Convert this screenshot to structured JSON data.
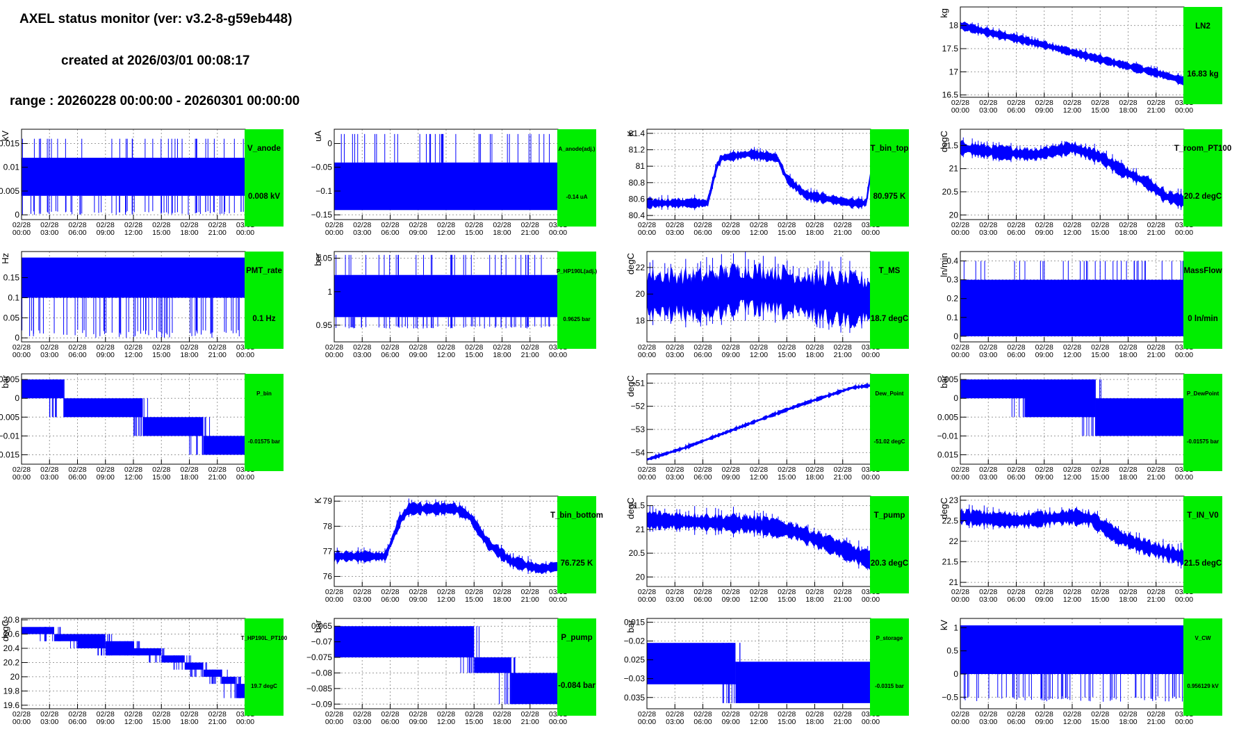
{
  "header": {
    "title": "AXEL status monitor (ver: v3.2-8-g59eb448)",
    "created": "created at 2026/03/01 00:08:17",
    "range": "range : 20260228 00:00:00 - 20260301 00:00:00"
  },
  "colors": {
    "data": "#0000ff",
    "panel_bg": "#00ee00",
    "grid": "#9a9a9a"
  },
  "time_axis": [
    "02/28\n00:00",
    "02/28\n03:00",
    "02/28\n06:00",
    "02/28\n09:00",
    "02/28\n12:00",
    "02/28\n15:00",
    "02/28\n18:00",
    "02/28\n21:00",
    "03/01\n00:00"
  ],
  "chart_data": [
    {
      "name": "LN2",
      "row": 0,
      "col": 3,
      "type": "line",
      "render": "trend",
      "unit": "kg",
      "value": "16.83 kg",
      "y_ticks": [
        {
          "v": 16.5,
          "t": "16.5"
        },
        {
          "v": 17,
          "t": "17"
        },
        {
          "v": 17.5,
          "t": "17.5"
        },
        {
          "v": 18,
          "t": "18"
        }
      ],
      "ylim": [
        16.45,
        18.4
      ],
      "trend": [
        [
          0,
          18.0
        ],
        [
          3,
          17.85
        ],
        [
          6,
          17.72
        ],
        [
          9,
          17.58
        ],
        [
          12,
          17.42
        ],
        [
          15,
          17.27
        ],
        [
          18,
          17.12
        ],
        [
          21,
          16.98
        ],
        [
          24,
          16.8
        ]
      ],
      "spread": 0.22
    },
    {
      "name": "V_anode",
      "row": 1,
      "col": 0,
      "type": "line",
      "render": "band",
      "unit": "kV",
      "value": "0.008 kV",
      "y_ticks": [
        {
          "v": 0,
          "t": "0"
        },
        {
          "v": 0.005,
          "t": "0.005"
        },
        {
          "v": 0.01,
          "t": "0.01"
        },
        {
          "v": 0.015,
          "t": "0.015"
        }
      ],
      "ylim": [
        -0.001,
        0.018
      ],
      "bands": [
        [
          0,
          24,
          0.004,
          0.012
        ]
      ],
      "spikes_down": [
        0.0
      ],
      "spikes_up": [
        0.016
      ]
    },
    {
      "name": "A_anode(adj.)",
      "row": 1,
      "col": 1,
      "type": "line",
      "render": "band",
      "unit": "uA",
      "value": "-0.14 uA",
      "y_ticks": [
        {
          "v": -0.15,
          "t": "−0.15"
        },
        {
          "v": -0.1,
          "t": "−0.1"
        },
        {
          "v": -0.05,
          "t": "−0.05"
        },
        {
          "v": 0,
          "t": "0"
        }
      ],
      "ylim": [
        -0.16,
        0.03
      ],
      "bands": [
        [
          0,
          24,
          -0.14,
          -0.04
        ]
      ],
      "spikes_up": [
        0.02
      ]
    },
    {
      "name": "T_bin_top",
      "row": 1,
      "col": 2,
      "type": "line",
      "render": "trend",
      "unit": "K",
      "value": "80.975 K",
      "y_ticks": [
        {
          "v": 80.4,
          "t": "80.4"
        },
        {
          "v": 80.6,
          "t": "80.6"
        },
        {
          "v": 80.8,
          "t": "80.8"
        },
        {
          "v": 81,
          "t": "81"
        },
        {
          "v": 81.2,
          "t": "81.2"
        },
        {
          "v": 81.4,
          "t": "81.4"
        }
      ],
      "ylim": [
        80.35,
        81.45
      ],
      "trend": [
        [
          0,
          80.55
        ],
        [
          6.5,
          80.55
        ],
        [
          7.5,
          81.0
        ],
        [
          8,
          81.1
        ],
        [
          11,
          81.15
        ],
        [
          14,
          81.1
        ],
        [
          15,
          80.85
        ],
        [
          17,
          80.65
        ],
        [
          22,
          80.55
        ],
        [
          23.5,
          80.55
        ],
        [
          24,
          80.9
        ]
      ],
      "spread": 0.14
    },
    {
      "name": "T_room_PT100",
      "row": 1,
      "col": 3,
      "type": "line",
      "render": "trend",
      "unit": "degC",
      "value": "20.2 degC",
      "y_ticks": [
        {
          "v": 20,
          "t": "20"
        },
        {
          "v": 20.5,
          "t": "20.5"
        },
        {
          "v": 21,
          "t": "21"
        },
        {
          "v": 21.5,
          "t": "21.5"
        }
      ],
      "ylim": [
        19.9,
        21.85
      ],
      "trend": [
        [
          0,
          21.45
        ],
        [
          4,
          21.35
        ],
        [
          8,
          21.3
        ],
        [
          12,
          21.45
        ],
        [
          15,
          21.25
        ],
        [
          17,
          21.0
        ],
        [
          20,
          20.7
        ],
        [
          22,
          20.4
        ],
        [
          24,
          20.3
        ]
      ],
      "spread": 0.35
    },
    {
      "name": "PMT_rate",
      "row": 2,
      "col": 0,
      "type": "line",
      "render": "band",
      "unit": "Hz",
      "value": "0.1 Hz",
      "y_ticks": [
        {
          "v": 0,
          "t": "0"
        },
        {
          "v": 0.05,
          "t": "0.05"
        },
        {
          "v": 0.1,
          "t": "0.1"
        },
        {
          "v": 0.15,
          "t": "0.15"
        }
      ],
      "ylim": [
        -0.01,
        0.215
      ],
      "bands": [
        [
          0,
          24,
          0.1,
          0.2
        ]
      ],
      "spikes_down": [
        0.0
      ]
    },
    {
      "name": "P_HP190L(adj.)",
      "row": 2,
      "col": 1,
      "type": "line",
      "render": "band",
      "unit": "bar",
      "value": "0.9625 bar",
      "y_ticks": [
        {
          "v": 0.95,
          "t": "0.95"
        },
        {
          "v": 1,
          "t": "1"
        },
        {
          "v": 1.05,
          "t": "1.05"
        }
      ],
      "ylim": [
        0.925,
        1.06
      ],
      "bands": [
        [
          0,
          24,
          0.962,
          1.025
        ]
      ],
      "spikes_down": [
        0.945
      ],
      "spikes_up": [
        1.055
      ]
    },
    {
      "name": "T_MS",
      "row": 2,
      "col": 2,
      "type": "line",
      "render": "trend",
      "unit": "degC",
      "value": "18.7 degC",
      "y_ticks": [
        {
          "v": 18,
          "t": "18"
        },
        {
          "v": 20,
          "t": "20"
        },
        {
          "v": 22,
          "t": "22"
        }
      ],
      "ylim": [
        16.4,
        23.2
      ],
      "trend": [
        [
          0,
          20.0
        ],
        [
          6,
          19.9
        ],
        [
          10,
          20.4
        ],
        [
          14,
          20.2
        ],
        [
          18,
          19.8
        ],
        [
          22,
          19.6
        ],
        [
          24,
          19.5
        ]
      ],
      "spread": 4.4
    },
    {
      "name": "MassFlow",
      "row": 2,
      "col": 3,
      "type": "line",
      "render": "band",
      "unit": "ln/min",
      "value": "0 ln/min",
      "y_ticks": [
        {
          "v": 0,
          "t": "0"
        },
        {
          "v": 0.1,
          "t": "0.1"
        },
        {
          "v": 0.2,
          "t": "0.2"
        },
        {
          "v": 0.3,
          "t": "0.3"
        },
        {
          "v": 0.4,
          "t": "0.4"
        }
      ],
      "ylim": [
        -0.03,
        0.45
      ],
      "bands": [
        [
          0,
          24,
          0.0,
          0.3
        ]
      ],
      "spikes_up": [
        0.4
      ]
    },
    {
      "name": "P_bin",
      "row": 3,
      "col": 0,
      "type": "line",
      "render": "steps",
      "unit": "bar",
      "value": "-0.01575 bar",
      "y_ticks": [
        {
          "v": -0.015,
          "t": "0.015"
        },
        {
          "v": -0.01,
          "t": "−0.01"
        },
        {
          "v": -0.005,
          "t": "0.005"
        },
        {
          "v": 0,
          "t": "0"
        },
        {
          "v": 0.005,
          "t": "0.005"
        }
      ],
      "ylim": [
        -0.0175,
        0.0065
      ],
      "bands": [
        [
          0,
          4.5,
          0.0,
          0.005
        ],
        [
          4.5,
          13,
          -0.005,
          0.0
        ],
        [
          13,
          19.5,
          -0.01,
          -0.005
        ],
        [
          19.5,
          24,
          -0.015,
          -0.01
        ]
      ]
    },
    {
      "name": "Dew_Point",
      "row": 3,
      "col": 2,
      "type": "line",
      "render": "trend",
      "unit": "degC",
      "value": "-51.02 degC",
      "y_ticks": [
        {
          "v": -54,
          "t": "−54"
        },
        {
          "v": -53,
          "t": "−53"
        },
        {
          "v": -52,
          "t": "−52"
        },
        {
          "v": -51,
          "t": "−51"
        }
      ],
      "ylim": [
        -54.5,
        -50.6
      ],
      "trend": [
        [
          0,
          -54.3
        ],
        [
          4,
          -53.8
        ],
        [
          8,
          -53.2
        ],
        [
          12,
          -52.6
        ],
        [
          16,
          -52.0
        ],
        [
          19,
          -51.6
        ],
        [
          22,
          -51.2
        ],
        [
          24,
          -51.1
        ]
      ],
      "spread": 0.2
    },
    {
      "name": "P_DewPoint",
      "row": 3,
      "col": 3,
      "type": "line",
      "render": "steps",
      "unit": "bar",
      "value": "-0.01575 bar",
      "y_ticks": [
        {
          "v": -0.015,
          "t": "0.015"
        },
        {
          "v": -0.01,
          "t": "−0.01"
        },
        {
          "v": -0.005,
          "t": "0.005"
        },
        {
          "v": 0,
          "t": "0"
        },
        {
          "v": 0.005,
          "t": "0.005"
        }
      ],
      "ylim": [
        -0.0175,
        0.0065
      ],
      "bands": [
        [
          0,
          7,
          0.0,
          0.005
        ],
        [
          7,
          14.5,
          -0.005,
          0.005
        ],
        [
          14.5,
          24,
          -0.01,
          0.0
        ]
      ]
    },
    {
      "name": "T_bin_bottom",
      "row": 4,
      "col": 1,
      "type": "line",
      "render": "trend",
      "unit": "K",
      "value": "76.725 K",
      "y_ticks": [
        {
          "v": 76,
          "t": "76"
        },
        {
          "v": 77,
          "t": "77"
        },
        {
          "v": 78,
          "t": "78"
        },
        {
          "v": 79,
          "t": "79"
        }
      ],
      "ylim": [
        75.6,
        79.2
      ],
      "trend": [
        [
          0,
          76.8
        ],
        [
          5.5,
          76.8
        ],
        [
          7,
          78.2
        ],
        [
          8,
          78.7
        ],
        [
          13,
          78.7
        ],
        [
          14.5,
          78.4
        ],
        [
          16.5,
          77.3
        ],
        [
          19,
          76.6
        ],
        [
          22,
          76.3
        ],
        [
          24,
          76.4
        ]
      ],
      "spread": 0.55
    },
    {
      "name": "T_pump",
      "row": 4,
      "col": 2,
      "type": "line",
      "render": "trend",
      "unit": "degC",
      "value": "20.3 degC",
      "y_ticks": [
        {
          "v": 20,
          "t": "20"
        },
        {
          "v": 20.5,
          "t": "20.5"
        },
        {
          "v": 21,
          "t": "21"
        },
        {
          "v": 21.5,
          "t": "21.5"
        }
      ],
      "ylim": [
        19.8,
        21.7
      ],
      "trend": [
        [
          0,
          21.2
        ],
        [
          6,
          21.15
        ],
        [
          12,
          21.1
        ],
        [
          16,
          20.95
        ],
        [
          20,
          20.65
        ],
        [
          24,
          20.35
        ]
      ],
      "spread": 0.45
    },
    {
      "name": "T_IN_V0",
      "row": 4,
      "col": 3,
      "type": "line",
      "render": "trend",
      "unit": "degC",
      "value": "21.5 degC",
      "y_ticks": [
        {
          "v": 21,
          "t": "21"
        },
        {
          "v": 21.5,
          "t": "21.5"
        },
        {
          "v": 22,
          "t": "22"
        },
        {
          "v": 22.5,
          "t": "22.5"
        },
        {
          "v": 23,
          "t": "23"
        }
      ],
      "ylim": [
        20.9,
        23.1
      ],
      "trend": [
        [
          0,
          22.6
        ],
        [
          6,
          22.5
        ],
        [
          12,
          22.6
        ],
        [
          14,
          22.55
        ],
        [
          17,
          22.1
        ],
        [
          20,
          21.85
        ],
        [
          24,
          21.6
        ]
      ],
      "spread": 0.45
    },
    {
      "name": "T_HP190L_PT100",
      "row": 5,
      "col": 0,
      "type": "line",
      "render": "steps",
      "unit": "degC",
      "value": "19.7 degC",
      "y_ticks": [
        {
          "v": 19.6,
          "t": "19.6"
        },
        {
          "v": 19.8,
          "t": "19.8"
        },
        {
          "v": 20,
          "t": "20"
        },
        {
          "v": 20.2,
          "t": "20.2"
        },
        {
          "v": 20.4,
          "t": "20.4"
        },
        {
          "v": 20.6,
          "t": "20.6"
        },
        {
          "v": 20.8,
          "t": "20.8"
        }
      ],
      "ylim": [
        19.55,
        20.82
      ],
      "bands": [
        [
          0,
          3.5,
          20.6,
          20.7
        ],
        [
          3.5,
          6,
          20.5,
          20.6
        ],
        [
          6,
          9,
          20.4,
          20.6
        ],
        [
          9,
          12,
          20.3,
          20.5
        ],
        [
          12,
          15,
          20.3,
          20.4
        ],
        [
          15,
          17.5,
          20.2,
          20.3
        ],
        [
          17.5,
          19.5,
          20.1,
          20.2
        ],
        [
          19.5,
          21.5,
          20.0,
          20.1
        ],
        [
          21.5,
          23,
          19.9,
          20.0
        ],
        [
          23,
          24,
          19.7,
          19.9
        ]
      ]
    },
    {
      "name": "P_pump",
      "row": 5,
      "col": 1,
      "type": "line",
      "render": "steps",
      "unit": "bar",
      "value": "-0.084 bar",
      "y_ticks": [
        {
          "v": -0.09,
          "t": "−0.09"
        },
        {
          "v": -0.085,
          "t": "−0.085"
        },
        {
          "v": -0.08,
          "t": "−0.08"
        },
        {
          "v": -0.075,
          "t": "−0.075"
        },
        {
          "v": -0.07,
          "t": "−0.07"
        },
        {
          "v": -0.065,
          "t": "0.065"
        }
      ],
      "ylim": [
        -0.0915,
        -0.0625
      ],
      "bands": [
        [
          0,
          15,
          -0.075,
          -0.065
        ],
        [
          15,
          19,
          -0.08,
          -0.075
        ],
        [
          19,
          24,
          -0.09,
          -0.08
        ]
      ]
    },
    {
      "name": "P_storage",
      "row": 5,
      "col": 2,
      "type": "line",
      "render": "steps",
      "unit": "bar",
      "value": "-0.0315 bar",
      "y_ticks": [
        {
          "v": -0.035,
          "t": "0.035"
        },
        {
          "v": -0.03,
          "t": "−0.03"
        },
        {
          "v": -0.025,
          "t": "0.025"
        },
        {
          "v": -0.02,
          "t": "−0.02"
        },
        {
          "v": -0.015,
          "t": "0.015"
        }
      ],
      "ylim": [
        -0.038,
        -0.014
      ],
      "bands": [
        [
          0,
          9.5,
          -0.0315,
          -0.0205
        ],
        [
          9.5,
          24,
          -0.0365,
          -0.0255
        ]
      ]
    },
    {
      "name": "V_CW",
      "row": 5,
      "col": 3,
      "type": "line",
      "render": "band",
      "unit": "kV",
      "value": "0.956129 kV",
      "y_ticks": [
        {
          "v": -0.5,
          "t": "−0.5"
        },
        {
          "v": 0,
          "t": "0"
        },
        {
          "v": 0.5,
          "t": "0.5"
        },
        {
          "v": 1,
          "t": "1"
        }
      ],
      "ylim": [
        -0.75,
        1.2
      ],
      "bands": [
        [
          0,
          24,
          0.0,
          1.05
        ]
      ],
      "spikes_down": [
        -0.6
      ]
    }
  ]
}
